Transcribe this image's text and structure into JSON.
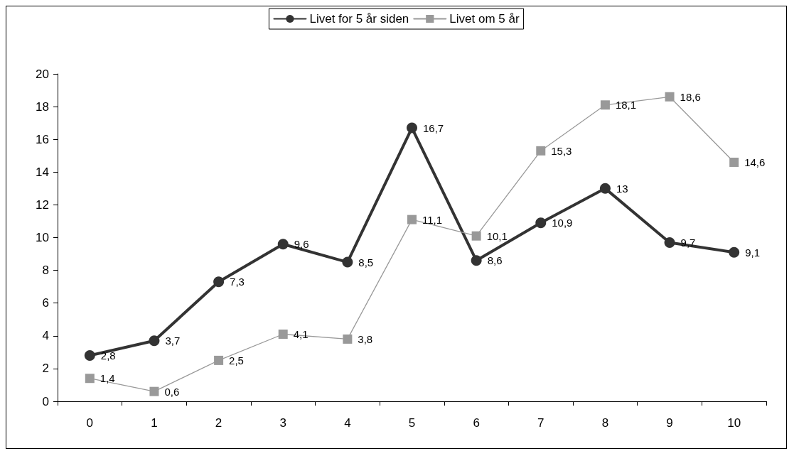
{
  "chart_data": {
    "type": "line",
    "categories": [
      "0",
      "1",
      "2",
      "3",
      "4",
      "5",
      "6",
      "7",
      "8",
      "9",
      "10"
    ],
    "series": [
      {
        "name": "Livet for 5 år siden",
        "color": "#333333",
        "marker": "circle",
        "values": [
          2.8,
          3.7,
          7.3,
          9.6,
          8.5,
          16.7,
          8.6,
          10.9,
          13,
          9.7,
          9.1
        ],
        "value_labels": [
          "2,8",
          "3,7",
          "7,3",
          "9,6",
          "8,5",
          "16,7",
          "8,6",
          "10,9",
          "13",
          "9,7",
          "9,1"
        ]
      },
      {
        "name": "Livet om 5 år",
        "color": "#999999",
        "marker": "square",
        "values": [
          1.4,
          0.6,
          2.5,
          4.1,
          3.8,
          11.1,
          10.1,
          15.3,
          18.1,
          18.6,
          14.6
        ],
        "value_labels": [
          "1,4",
          "0,6",
          "2,5",
          "4,1",
          "3,8",
          "11,1",
          "10,1",
          "15,3",
          "18,1",
          "18,6",
          "14,6"
        ]
      }
    ],
    "ylim": [
      0,
      20
    ],
    "yticks": [
      0,
      2,
      4,
      6,
      8,
      10,
      12,
      14,
      16,
      18,
      20
    ],
    "grid": false,
    "legend": "top",
    "line_style": "solid"
  }
}
